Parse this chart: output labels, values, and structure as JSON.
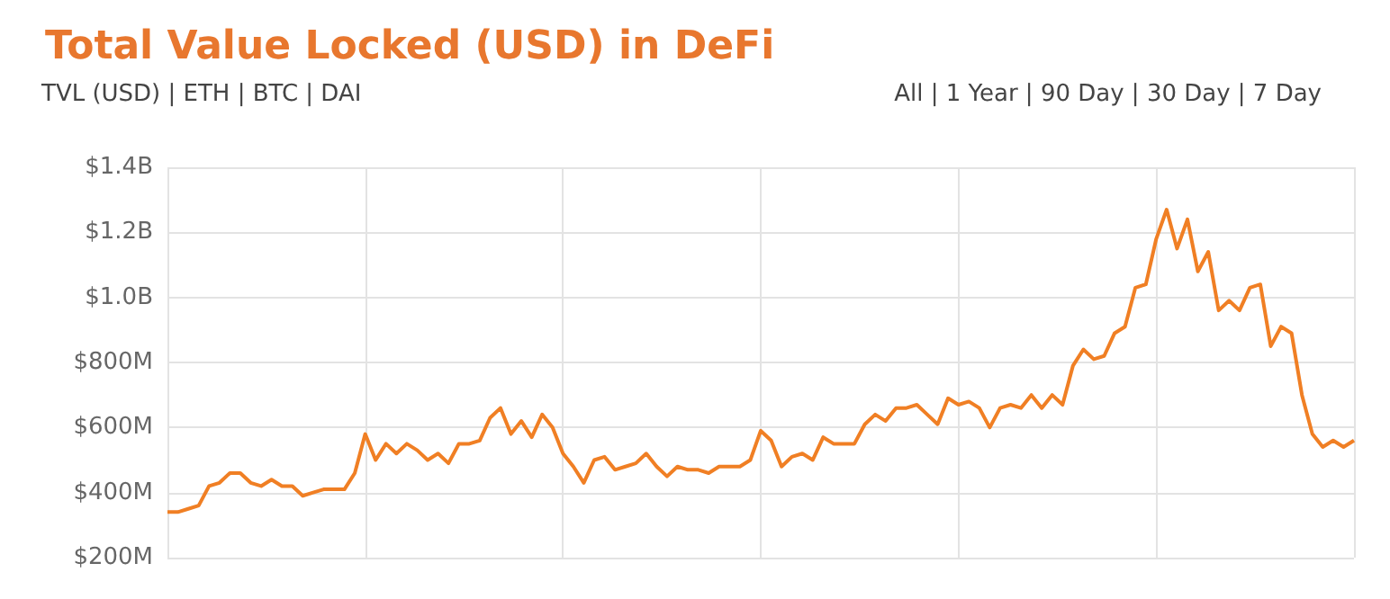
{
  "chart_data": {
    "type": "line",
    "title": "Total Value Locked (USD) in DeFi",
    "annotations": [
      "TVL (USD) | ETH | BTC | DAI",
      "All | 1 Year | 90 Day | 30 Day | 7 Day"
    ],
    "categories": [
      null,
      null,
      null,
      null,
      null,
      null,
      null,
      null,
      null,
      null,
      null,
      null,
      null,
      null,
      null,
      null,
      null,
      null,
      null,
      null,
      null,
      null,
      null,
      null,
      null,
      null,
      null,
      null,
      null,
      null,
      null,
      null,
      null,
      null,
      null,
      null,
      null,
      null,
      null,
      null,
      null,
      null,
      null,
      null,
      null,
      null,
      null,
      null,
      null,
      null,
      null,
      null,
      null,
      null,
      null,
      null,
      null,
      null,
      null,
      null,
      null,
      null,
      null,
      null,
      null,
      null,
      null,
      null,
      null,
      null,
      null,
      null,
      null,
      null,
      null,
      null,
      null,
      null,
      null,
      null,
      null,
      null,
      null,
      null,
      null,
      null,
      null,
      null,
      null,
      null,
      null,
      null,
      null,
      null,
      null,
      null,
      null,
      null,
      null,
      null,
      null,
      null,
      null,
      null,
      null,
      null,
      null,
      null,
      null,
      null,
      null,
      null,
      null,
      null,
      null
    ],
    "series": [
      {
        "color": "#f07f24",
        "values": [
          340000000,
          340000000,
          350000000,
          360000000,
          420000000,
          430000000,
          460000000,
          460000000,
          430000000,
          420000000,
          440000000,
          420000000,
          420000000,
          390000000,
          400000000,
          410000000,
          410000000,
          410000000,
          460000000,
          580000000,
          500000000,
          550000000,
          520000000,
          550000000,
          530000000,
          500000000,
          520000000,
          490000000,
          550000000,
          550000000,
          560000000,
          630000000,
          660000000,
          580000000,
          620000000,
          570000000,
          640000000,
          600000000,
          520000000,
          480000000,
          430000000,
          500000000,
          510000000,
          470000000,
          480000000,
          490000000,
          520000000,
          480000000,
          450000000,
          480000000,
          470000000,
          470000000,
          460000000,
          480000000,
          480000000,
          480000000,
          500000000,
          590000000,
          560000000,
          480000000,
          510000000,
          520000000,
          500000000,
          570000000,
          550000000,
          550000000,
          550000000,
          610000000,
          640000000,
          620000000,
          660000000,
          660000000,
          670000000,
          640000000,
          610000000,
          690000000,
          670000000,
          680000000,
          660000000,
          600000000,
          660000000,
          670000000,
          660000000,
          700000000,
          660000000,
          700000000,
          670000000,
          790000000,
          840000000,
          810000000,
          820000000,
          890000000,
          910000000,
          1030000000,
          1040000000,
          1180000000,
          1270000000,
          1150000000,
          1240000000,
          1080000000,
          1140000000,
          960000000,
          990000000,
          960000000,
          1030000000,
          1040000000,
          850000000,
          910000000,
          890000000,
          700000000,
          580000000,
          540000000,
          560000000,
          540000000,
          560000000
        ]
      }
    ],
    "ylim": [
      200000000,
      1400000000
    ],
    "yticks": [
      {
        "value": 200000000,
        "label": "$200M"
      },
      {
        "value": 400000000,
        "label": "$400M"
      },
      {
        "value": 600000000,
        "label": "$600M"
      },
      {
        "value": 800000000,
        "label": "$800M"
      },
      {
        "value": 1000000000,
        "label": "$1.0B"
      },
      {
        "value": 1200000000,
        "label": "$1.2B"
      },
      {
        "value": 1400000000,
        "label": "$1.4B"
      }
    ],
    "grid": true,
    "tick_labels": "y",
    "line_style": "solid"
  }
}
